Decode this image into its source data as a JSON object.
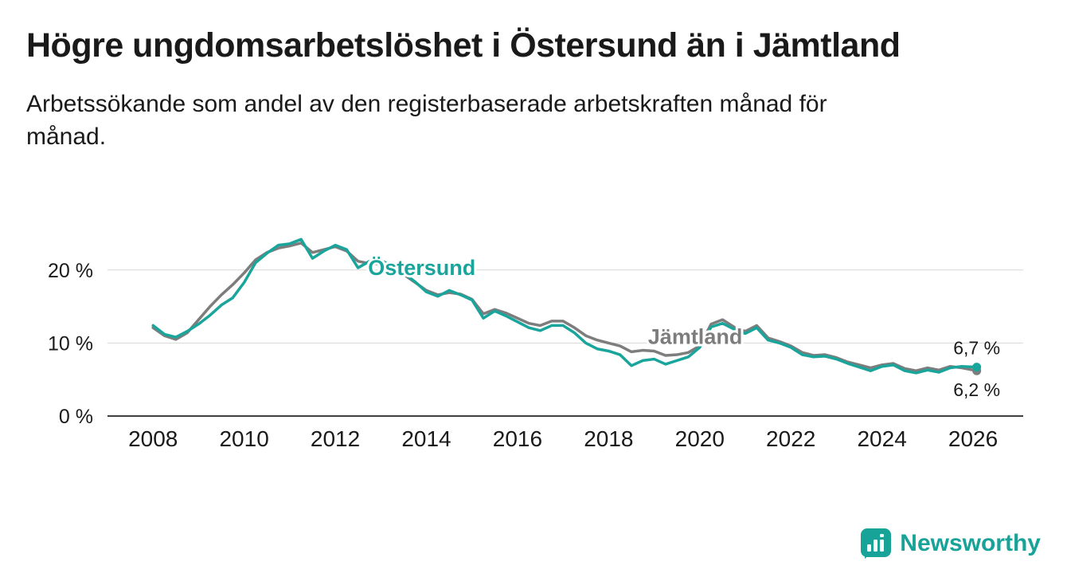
{
  "header": {
    "title": "Högre ungdomsarbetslöshet i Östersund än i Jämtland",
    "subtitle_lines": [
      "Arbetssökande som andel av den registerbaserade arbetskraften månad för",
      "månad."
    ]
  },
  "chart_data": {
    "type": "line",
    "title": "Högre ungdomsarbetslöshet i Östersund än i Jämtland",
    "xlabel": "",
    "ylabel": "",
    "unit": "%",
    "xlim": [
      2007,
      2027.1
    ],
    "ylim": [
      0,
      26.2
    ],
    "grid": true,
    "grid_color": "#d8d8d8",
    "axis_color": "#404040",
    "text_color": "#1a1a1a",
    "legend_position": "inline-labels",
    "y_ticks": [
      {
        "value": 0,
        "label": "0 %"
      },
      {
        "value": 10,
        "label": "10 %"
      },
      {
        "value": 20,
        "label": "20 %"
      }
    ],
    "x_ticks": [
      {
        "value": 2008,
        "label": "2008"
      },
      {
        "value": 2010,
        "label": "2010"
      },
      {
        "value": 2012,
        "label": "2012"
      },
      {
        "value": 2014,
        "label": "2014"
      },
      {
        "value": 2016,
        "label": "2016"
      },
      {
        "value": 2018,
        "label": "2018"
      },
      {
        "value": 2020,
        "label": "2020"
      },
      {
        "value": 2022,
        "label": "2022"
      },
      {
        "value": 2024,
        "label": "2024"
      },
      {
        "value": 2026,
        "label": "2026"
      }
    ],
    "x": [
      2008.0,
      2008.25,
      2008.5,
      2008.75,
      2009.0,
      2009.25,
      2009.5,
      2009.75,
      2010.0,
      2010.25,
      2010.5,
      2010.75,
      2011.0,
      2011.25,
      2011.5,
      2011.75,
      2012.0,
      2012.25,
      2012.5,
      2012.75,
      2013.0,
      2013.25,
      2013.5,
      2013.75,
      2014.0,
      2014.25,
      2014.5,
      2014.75,
      2015.0,
      2015.25,
      2015.5,
      2015.75,
      2016.0,
      2016.25,
      2016.5,
      2016.75,
      2017.0,
      2017.25,
      2017.5,
      2017.75,
      2018.0,
      2018.25,
      2018.5,
      2018.75,
      2019.0,
      2019.25,
      2019.5,
      2019.75,
      2020.0,
      2020.25,
      2020.5,
      2020.75,
      2021.0,
      2021.25,
      2021.5,
      2021.75,
      2022.0,
      2022.25,
      2022.5,
      2022.75,
      2023.0,
      2023.25,
      2023.5,
      2023.75,
      2024.0,
      2024.25,
      2024.5,
      2024.75,
      2025.0,
      2025.25,
      2025.5,
      2025.75,
      2026.08
    ],
    "series": [
      {
        "id": "jamtland",
        "name": "Jämtland",
        "color": "#7d7d7d",
        "label_x": 2019.9,
        "label_y": 9.9,
        "end_label": "6,2 %",
        "end_value": 6.2,
        "values": [
          12.1,
          11.0,
          10.5,
          11.4,
          13.2,
          15.0,
          16.6,
          18.0,
          19.6,
          21.4,
          22.4,
          23.0,
          23.3,
          23.7,
          22.4,
          22.8,
          23.2,
          22.6,
          21.2,
          20.9,
          20.8,
          20.3,
          19.4,
          18.3,
          17.2,
          16.6,
          16.9,
          16.7,
          16.0,
          14.0,
          14.6,
          14.1,
          13.4,
          12.7,
          12.4,
          13.0,
          13.0,
          12.1,
          11.0,
          10.4,
          10.0,
          9.6,
          8.8,
          9.0,
          8.9,
          8.3,
          8.4,
          8.7,
          9.6,
          12.6,
          13.2,
          12.2,
          11.6,
          12.4,
          10.7,
          10.2,
          9.6,
          8.7,
          8.3,
          8.4,
          8.0,
          7.4,
          7.0,
          6.6,
          7.0,
          7.2,
          6.5,
          6.2,
          6.6,
          6.3,
          6.8,
          6.6,
          6.2
        ]
      },
      {
        "id": "ostersund",
        "name": "Östersund",
        "color": "#19a59b",
        "label_x": 2013.9,
        "label_y": 19.3,
        "end_label": "6,7 %",
        "end_value": 6.7,
        "values": [
          12.4,
          11.2,
          10.8,
          11.6,
          12.6,
          13.8,
          15.2,
          16.2,
          18.3,
          21.0,
          22.3,
          23.4,
          23.6,
          24.2,
          21.6,
          22.6,
          23.4,
          22.8,
          20.3,
          21.2,
          21.3,
          20.6,
          19.6,
          18.4,
          17.0,
          16.4,
          17.2,
          16.6,
          15.9,
          13.4,
          14.4,
          13.7,
          12.9,
          12.1,
          11.7,
          12.4,
          12.4,
          11.4,
          10.0,
          9.2,
          8.9,
          8.4,
          6.9,
          7.6,
          7.8,
          7.1,
          7.6,
          8.1,
          9.4,
          12.2,
          12.7,
          11.9,
          11.3,
          12.1,
          10.4,
          10.0,
          9.4,
          8.4,
          8.1,
          8.2,
          7.8,
          7.2,
          6.7,
          6.2,
          6.8,
          7.0,
          6.2,
          5.9,
          6.3,
          6.0,
          6.6,
          6.8,
          6.7
        ]
      }
    ]
  },
  "footer": {
    "brand": "Newsworthy",
    "logo_color": "#17a398"
  }
}
